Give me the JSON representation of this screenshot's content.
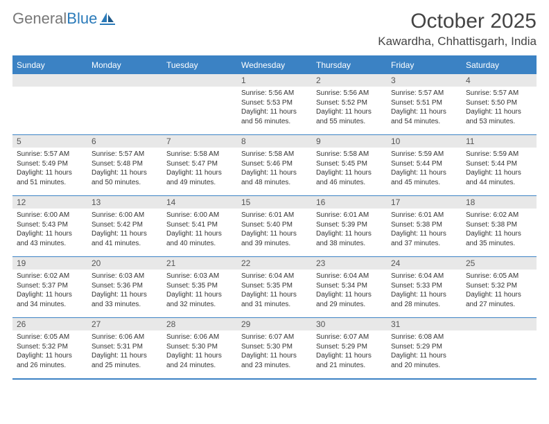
{
  "logo": {
    "general": "General",
    "blue": "Blue"
  },
  "header": {
    "month_title": "October 2025",
    "location": "Kawardha, Chhattisgarh, India"
  },
  "colors": {
    "header_bg": "#3b82c4",
    "header_text": "#ffffff",
    "daynum_bg": "#e8e8e8",
    "border": "#3b82c4"
  },
  "day_headers": [
    "Sunday",
    "Monday",
    "Tuesday",
    "Wednesday",
    "Thursday",
    "Friday",
    "Saturday"
  ],
  "weeks": [
    [
      {
        "n": "",
        "sr": "",
        "ss": "",
        "dl": ""
      },
      {
        "n": "",
        "sr": "",
        "ss": "",
        "dl": ""
      },
      {
        "n": "",
        "sr": "",
        "ss": "",
        "dl": ""
      },
      {
        "n": "1",
        "sr": "Sunrise: 5:56 AM",
        "ss": "Sunset: 5:53 PM",
        "dl": "Daylight: 11 hours and 56 minutes."
      },
      {
        "n": "2",
        "sr": "Sunrise: 5:56 AM",
        "ss": "Sunset: 5:52 PM",
        "dl": "Daylight: 11 hours and 55 minutes."
      },
      {
        "n": "3",
        "sr": "Sunrise: 5:57 AM",
        "ss": "Sunset: 5:51 PM",
        "dl": "Daylight: 11 hours and 54 minutes."
      },
      {
        "n": "4",
        "sr": "Sunrise: 5:57 AM",
        "ss": "Sunset: 5:50 PM",
        "dl": "Daylight: 11 hours and 53 minutes."
      }
    ],
    [
      {
        "n": "5",
        "sr": "Sunrise: 5:57 AM",
        "ss": "Sunset: 5:49 PM",
        "dl": "Daylight: 11 hours and 51 minutes."
      },
      {
        "n": "6",
        "sr": "Sunrise: 5:57 AM",
        "ss": "Sunset: 5:48 PM",
        "dl": "Daylight: 11 hours and 50 minutes."
      },
      {
        "n": "7",
        "sr": "Sunrise: 5:58 AM",
        "ss": "Sunset: 5:47 PM",
        "dl": "Daylight: 11 hours and 49 minutes."
      },
      {
        "n": "8",
        "sr": "Sunrise: 5:58 AM",
        "ss": "Sunset: 5:46 PM",
        "dl": "Daylight: 11 hours and 48 minutes."
      },
      {
        "n": "9",
        "sr": "Sunrise: 5:58 AM",
        "ss": "Sunset: 5:45 PM",
        "dl": "Daylight: 11 hours and 46 minutes."
      },
      {
        "n": "10",
        "sr": "Sunrise: 5:59 AM",
        "ss": "Sunset: 5:44 PM",
        "dl": "Daylight: 11 hours and 45 minutes."
      },
      {
        "n": "11",
        "sr": "Sunrise: 5:59 AM",
        "ss": "Sunset: 5:44 PM",
        "dl": "Daylight: 11 hours and 44 minutes."
      }
    ],
    [
      {
        "n": "12",
        "sr": "Sunrise: 6:00 AM",
        "ss": "Sunset: 5:43 PM",
        "dl": "Daylight: 11 hours and 43 minutes."
      },
      {
        "n": "13",
        "sr": "Sunrise: 6:00 AM",
        "ss": "Sunset: 5:42 PM",
        "dl": "Daylight: 11 hours and 41 minutes."
      },
      {
        "n": "14",
        "sr": "Sunrise: 6:00 AM",
        "ss": "Sunset: 5:41 PM",
        "dl": "Daylight: 11 hours and 40 minutes."
      },
      {
        "n": "15",
        "sr": "Sunrise: 6:01 AM",
        "ss": "Sunset: 5:40 PM",
        "dl": "Daylight: 11 hours and 39 minutes."
      },
      {
        "n": "16",
        "sr": "Sunrise: 6:01 AM",
        "ss": "Sunset: 5:39 PM",
        "dl": "Daylight: 11 hours and 38 minutes."
      },
      {
        "n": "17",
        "sr": "Sunrise: 6:01 AM",
        "ss": "Sunset: 5:38 PM",
        "dl": "Daylight: 11 hours and 37 minutes."
      },
      {
        "n": "18",
        "sr": "Sunrise: 6:02 AM",
        "ss": "Sunset: 5:38 PM",
        "dl": "Daylight: 11 hours and 35 minutes."
      }
    ],
    [
      {
        "n": "19",
        "sr": "Sunrise: 6:02 AM",
        "ss": "Sunset: 5:37 PM",
        "dl": "Daylight: 11 hours and 34 minutes."
      },
      {
        "n": "20",
        "sr": "Sunrise: 6:03 AM",
        "ss": "Sunset: 5:36 PM",
        "dl": "Daylight: 11 hours and 33 minutes."
      },
      {
        "n": "21",
        "sr": "Sunrise: 6:03 AM",
        "ss": "Sunset: 5:35 PM",
        "dl": "Daylight: 11 hours and 32 minutes."
      },
      {
        "n": "22",
        "sr": "Sunrise: 6:04 AM",
        "ss": "Sunset: 5:35 PM",
        "dl": "Daylight: 11 hours and 31 minutes."
      },
      {
        "n": "23",
        "sr": "Sunrise: 6:04 AM",
        "ss": "Sunset: 5:34 PM",
        "dl": "Daylight: 11 hours and 29 minutes."
      },
      {
        "n": "24",
        "sr": "Sunrise: 6:04 AM",
        "ss": "Sunset: 5:33 PM",
        "dl": "Daylight: 11 hours and 28 minutes."
      },
      {
        "n": "25",
        "sr": "Sunrise: 6:05 AM",
        "ss": "Sunset: 5:32 PM",
        "dl": "Daylight: 11 hours and 27 minutes."
      }
    ],
    [
      {
        "n": "26",
        "sr": "Sunrise: 6:05 AM",
        "ss": "Sunset: 5:32 PM",
        "dl": "Daylight: 11 hours and 26 minutes."
      },
      {
        "n": "27",
        "sr": "Sunrise: 6:06 AM",
        "ss": "Sunset: 5:31 PM",
        "dl": "Daylight: 11 hours and 25 minutes."
      },
      {
        "n": "28",
        "sr": "Sunrise: 6:06 AM",
        "ss": "Sunset: 5:30 PM",
        "dl": "Daylight: 11 hours and 24 minutes."
      },
      {
        "n": "29",
        "sr": "Sunrise: 6:07 AM",
        "ss": "Sunset: 5:30 PM",
        "dl": "Daylight: 11 hours and 23 minutes."
      },
      {
        "n": "30",
        "sr": "Sunrise: 6:07 AM",
        "ss": "Sunset: 5:29 PM",
        "dl": "Daylight: 11 hours and 21 minutes."
      },
      {
        "n": "31",
        "sr": "Sunrise: 6:08 AM",
        "ss": "Sunset: 5:29 PM",
        "dl": "Daylight: 11 hours and 20 minutes."
      },
      {
        "n": "",
        "sr": "",
        "ss": "",
        "dl": ""
      }
    ]
  ]
}
